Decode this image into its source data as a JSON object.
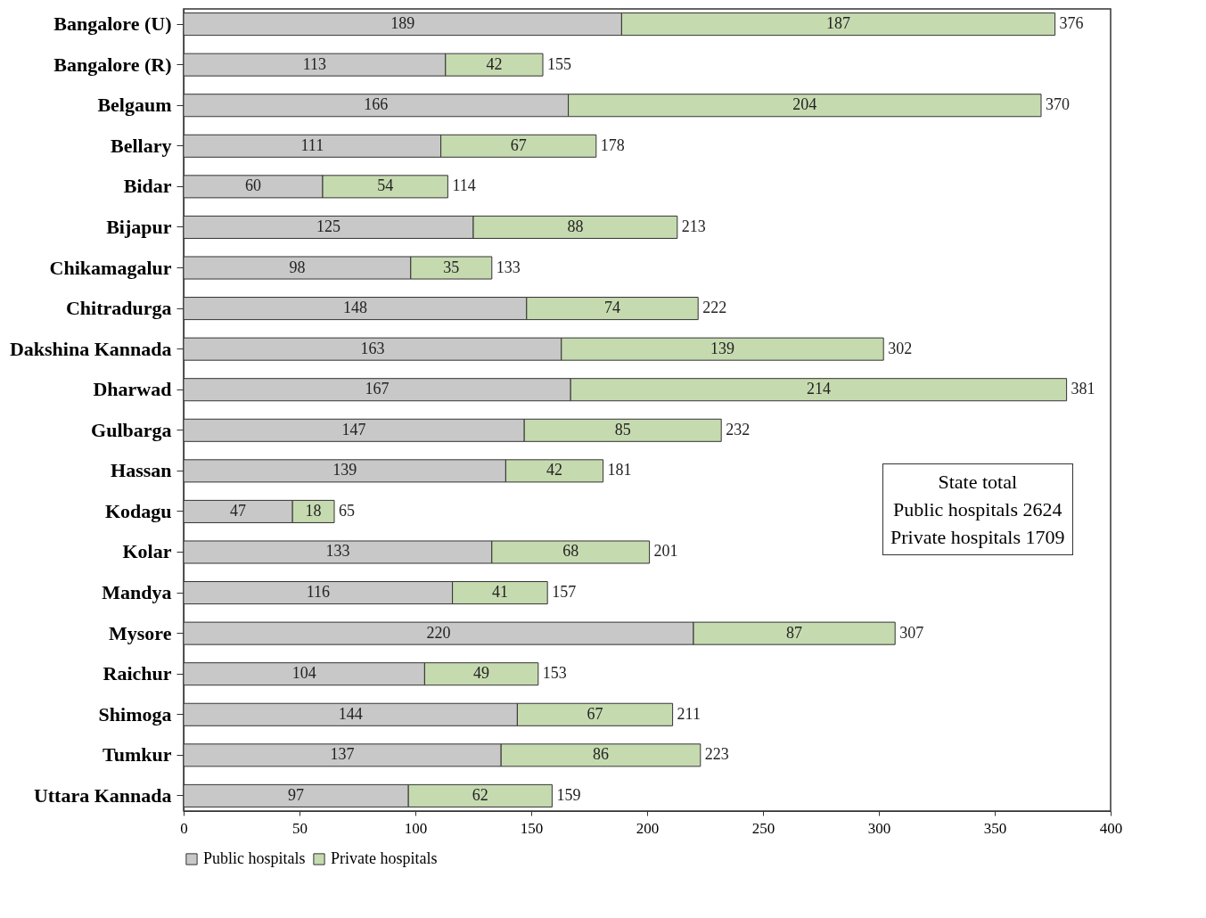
{
  "chart_data": {
    "type": "bar",
    "orientation": "horizontal",
    "stacked": true,
    "data_labels": true,
    "legend": "bottom",
    "grid": false,
    "categories": [
      "Bangalore (U)",
      "Bangalore (R)",
      "Belgaum",
      "Bellary",
      "Bidar",
      "Bijapur",
      "Chikamagalur",
      "Chitradurga",
      "Dakshina Kannada",
      "Dharwad",
      "Gulbarga",
      "Hassan",
      "Kodagu",
      "Kolar",
      "Mandya",
      "Mysore",
      "Raichur",
      "Shimoga",
      "Tumkur",
      "Uttara Kannada"
    ],
    "series": [
      {
        "name": "Public hospitals",
        "color": "#c8c8c8",
        "values": [
          189,
          113,
          166,
          111,
          60,
          125,
          98,
          148,
          163,
          167,
          147,
          139,
          47,
          133,
          116,
          220,
          104,
          144,
          137,
          97
        ]
      },
      {
        "name": "Private hospitals",
        "color": "#c6dab0",
        "values": [
          187,
          42,
          204,
          67,
          54,
          88,
          35,
          74,
          139,
          214,
          85,
          42,
          18,
          68,
          41,
          87,
          49,
          67,
          86,
          62
        ]
      }
    ],
    "totals": [
      "376",
      "155",
      "370",
      "178",
      "114",
      "213",
      "133",
      "222",
      "302",
      "381",
      "232",
      "181",
      "65",
      "201",
      "157",
      "307",
      "153",
      "211",
      "223",
      "159"
    ],
    "xlim": [
      0,
      400
    ],
    "xticks": [
      0,
      50,
      100,
      150,
      200,
      250,
      300,
      350,
      400
    ],
    "annotations": [
      "State total",
      "Public hospitals 2624",
      "Private hospitals 1709"
    ]
  }
}
